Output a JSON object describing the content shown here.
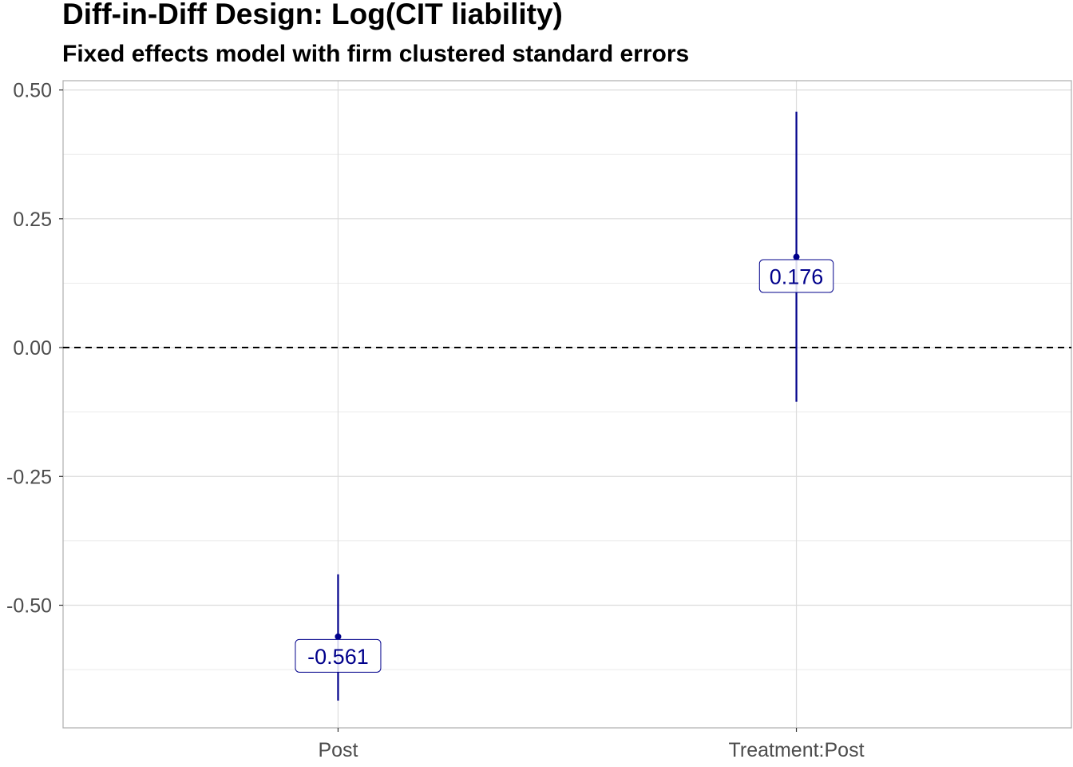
{
  "chart_data": {
    "type": "scatter",
    "title": "Diff-in-Diff Design: Log(CIT liability)",
    "subtitle": "Fixed effects model with firm clustered standard errors",
    "xlabel": "",
    "ylabel": "",
    "categories": [
      "Post",
      "Treatment:Post"
    ],
    "estimates": [
      -0.561,
      0.176
    ],
    "ci_lower": [
      -0.685,
      -0.105
    ],
    "ci_upper": [
      -0.44,
      0.458
    ],
    "data_labels": [
      "-0.561",
      "0.176"
    ],
    "y_ticks": [
      0.5,
      0.25,
      0.0,
      -0.25,
      -0.5
    ],
    "y_tick_labels": [
      "0.50",
      "0.25",
      "0.00",
      "-0.25",
      "-0.50"
    ],
    "ylim": [
      -0.738,
      0.518
    ],
    "reference_line": 0,
    "grid": true,
    "legend": "none",
    "colors": {
      "point": "#00008B",
      "label_text": "#00008B",
      "grid": "#EBEBEB",
      "axis_text": "#4D4D4D",
      "panel_border": "#B3B3B3",
      "reference_line": "#000000"
    }
  }
}
